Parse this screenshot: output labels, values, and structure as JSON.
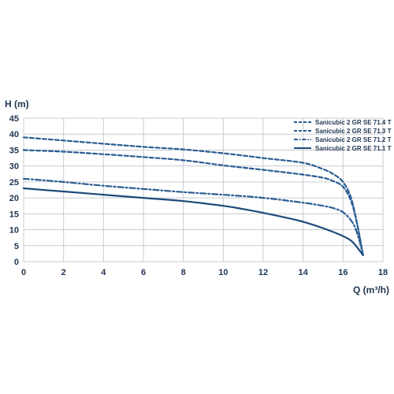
{
  "chart_data": {
    "type": "line",
    "title": "",
    "xlabel": "Q (m³/h)",
    "ylabel": "H (m)",
    "xlim": [
      0,
      18
    ],
    "ylim": [
      0,
      45
    ],
    "xticks": [
      0,
      2,
      4,
      6,
      8,
      10,
      12,
      14,
      16,
      18
    ],
    "yticks": [
      0,
      5,
      10,
      15,
      20,
      25,
      30,
      35,
      40,
      45
    ],
    "grid": true,
    "legend_position": "top-right",
    "series": [
      {
        "name": "Sanicubic 2 GR SE 71.4 T",
        "style": "dashed",
        "color": "#2a5d93",
        "x": [
          0,
          2,
          4,
          6,
          8,
          10,
          12,
          14,
          15,
          15.5,
          16,
          16.4,
          16.7,
          17
        ],
        "y": [
          39,
          38,
          37,
          36,
          35.2,
          34,
          32.5,
          31,
          29,
          27.5,
          25,
          20,
          12,
          2
        ]
      },
      {
        "name": "Sanicubic 2 GR SE 71.3 T",
        "style": "dashed",
        "color": "#2a5d93",
        "x": [
          0,
          2,
          4,
          6,
          8,
          10,
          12,
          14,
          15,
          15.5,
          16,
          16.4,
          16.7,
          17
        ],
        "y": [
          35,
          34.5,
          33.7,
          32.8,
          31.8,
          30.2,
          28.8,
          27.3,
          26.3,
          25.3,
          23.5,
          19,
          12,
          2
        ]
      },
      {
        "name": "Sanicubic 2 GR SE 71.2 T",
        "style": "dash-dot",
        "color": "#2a5d93",
        "x": [
          0,
          2,
          4,
          6,
          8,
          10,
          12,
          14,
          15,
          15.5,
          16,
          16.5,
          16.8,
          17
        ],
        "y": [
          26,
          25,
          23.8,
          22.8,
          21.8,
          21,
          20,
          18.5,
          17.5,
          16.8,
          15.5,
          12,
          7,
          2
        ]
      },
      {
        "name": "Sanicubic 2 GR SE 71.1 T",
        "style": "solid",
        "color": "#1d4a7a",
        "x": [
          0,
          2,
          4,
          6,
          8,
          10,
          11,
          12,
          13,
          14,
          15,
          16,
          16.5,
          17
        ],
        "y": [
          23,
          22,
          21,
          20,
          19,
          17.5,
          16.5,
          15.3,
          14,
          12.5,
          10.5,
          8,
          6,
          2
        ]
      }
    ]
  }
}
